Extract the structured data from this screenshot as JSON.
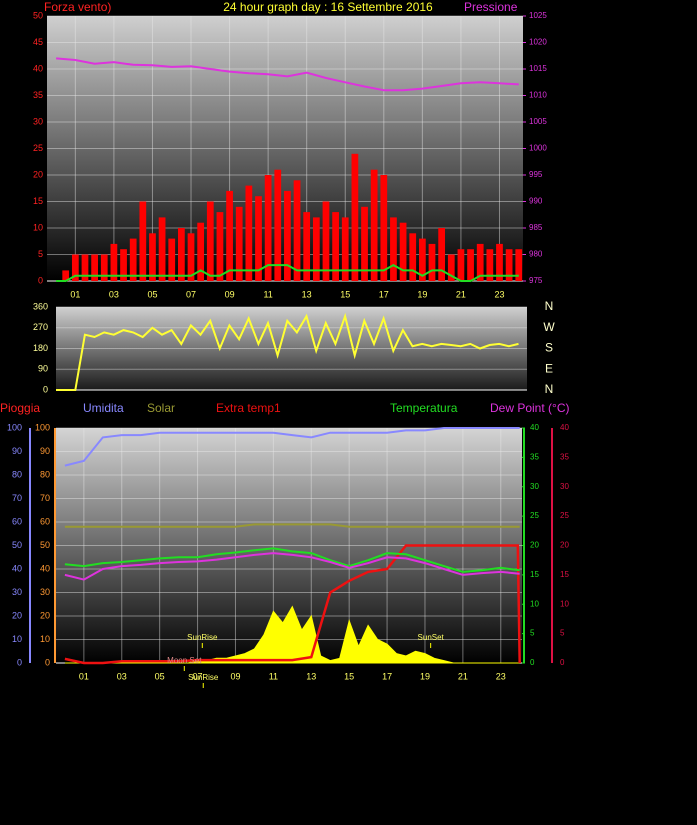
{
  "chart_data": [
    {
      "type": "combo",
      "title": "24 hour graph day : 16 Settembre 2016",
      "ylabel": "Forza vento)",
      "y2label": "Pressione",
      "xlim": [
        -0.47,
        24.22
      ],
      "xticks": [
        {
          "value": 1,
          "label": "01"
        },
        {
          "value": 3,
          "label": "03"
        },
        {
          "value": 5,
          "label": "05"
        },
        {
          "value": 7,
          "label": "07"
        },
        {
          "value": 9,
          "label": "09"
        },
        {
          "value": 11,
          "label": "11"
        },
        {
          "value": 13,
          "label": "13"
        },
        {
          "value": 15,
          "label": "15"
        },
        {
          "value": 17,
          "label": "17"
        },
        {
          "value": 19,
          "label": "19"
        },
        {
          "value": 21,
          "label": "21"
        },
        {
          "value": 23,
          "label": "23"
        }
      ],
      "ylim": [
        0,
        50
      ],
      "yticks": [
        0,
        5,
        10,
        15,
        20,
        25,
        30,
        35,
        40,
        45,
        50
      ],
      "y2lim": [
        975,
        1025
      ],
      "y2ticks": [
        975,
        980,
        985,
        990,
        995,
        1000,
        1005,
        1010,
        1015,
        1020,
        1025
      ],
      "grid": true,
      "series": [
        {
          "style": "bar",
          "color": "#ff0000",
          "x": [
            0,
            0.5,
            1,
            1.5,
            2,
            2.5,
            3,
            3.5,
            4,
            4.5,
            5,
            5.5,
            6,
            6.5,
            7,
            7.5,
            8,
            8.5,
            9,
            9.5,
            10,
            10.5,
            11,
            11.5,
            12,
            12.5,
            13,
            13.5,
            14,
            14.5,
            15,
            15.5,
            16,
            16.5,
            17,
            17.5,
            18,
            18.5,
            19,
            19.5,
            20,
            20.5,
            21,
            21.5,
            22,
            22.5,
            23,
            23.5,
            24
          ],
          "values": [
            0,
            2,
            5,
            5,
            5,
            5,
            7,
            6,
            8,
            15,
            9,
            12,
            8,
            10,
            9,
            11,
            15,
            13,
            17,
            14,
            18,
            16,
            20,
            21,
            17,
            19,
            13,
            12,
            15,
            13,
            12,
            24,
            14,
            21,
            20,
            12,
            11,
            9,
            8,
            7,
            10,
            5,
            6,
            6,
            7,
            6,
            7,
            6,
            6
          ]
        },
        {
          "style": "line",
          "color": "#22dd22",
          "x": [
            0,
            0.5,
            1,
            1.5,
            2,
            2.5,
            3,
            3.5,
            4,
            4.5,
            5,
            5.5,
            6,
            6.5,
            7,
            7.5,
            8,
            8.5,
            9,
            9.5,
            10,
            10.5,
            11,
            11.5,
            12,
            12.5,
            13,
            13.5,
            14,
            14.5,
            15,
            15.5,
            16,
            16.5,
            17,
            17.5,
            18,
            18.5,
            19,
            19.5,
            20,
            20.5,
            21,
            21.5,
            22,
            22.5,
            23,
            23.5,
            24
          ],
          "values": [
            0,
            0,
            1,
            1,
            1,
            1,
            1,
            1,
            1,
            1,
            1,
            1,
            1,
            1,
            1,
            2,
            1,
            1,
            2,
            2,
            2,
            2,
            3,
            3,
            3,
            2,
            2,
            2,
            2,
            2,
            2,
            2,
            2,
            2,
            2,
            3,
            2,
            2,
            1,
            2,
            2,
            1,
            0,
            0,
            1,
            1,
            1,
            1,
            1
          ]
        },
        {
          "style": "line",
          "axis": "y2",
          "color": "#dd33dd",
          "x": [
            0,
            1,
            2,
            3,
            4,
            5,
            6,
            7,
            8,
            9,
            10,
            11,
            12,
            13,
            14,
            15,
            16,
            17,
            18,
            19,
            20,
            21,
            22,
            23,
            24
          ],
          "values": [
            1017,
            1016.7,
            1016,
            1016.3,
            1015.8,
            1015.7,
            1015.4,
            1015.5,
            1015,
            1014.5,
            1014.2,
            1014,
            1013.6,
            1014.3,
            1013.3,
            1012.5,
            1011.7,
            1011,
            1011,
            1011.3,
            1011.8,
            1012.3,
            1012.5,
            1012.3,
            1012.1
          ]
        }
      ]
    },
    {
      "type": "line",
      "xlim": [
        0,
        24.44
      ],
      "ylim": [
        0,
        360
      ],
      "yticks": [
        0,
        90,
        180,
        270,
        360
      ],
      "grid": true,
      "compass": [
        "N",
        "W",
        "S",
        "E",
        "N"
      ],
      "series": [
        {
          "style": "line",
          "color": "#ffff33",
          "x": [
            0,
            0.5,
            1,
            1.5,
            2,
            2.5,
            3,
            3.5,
            4,
            4.5,
            5,
            5.5,
            6,
            6.5,
            7,
            7.5,
            8,
            8.5,
            9,
            9.5,
            10,
            10.5,
            11,
            11.5,
            12,
            12.5,
            13,
            13.5,
            14,
            14.5,
            15,
            15.5,
            16,
            16.5,
            17,
            17.5,
            18,
            18.5,
            19,
            19.5,
            20,
            20.5,
            21,
            21.5,
            22,
            22.5,
            23,
            23.5,
            24
          ],
          "values": [
            0,
            0,
            0,
            240,
            230,
            250,
            240,
            260,
            250,
            230,
            270,
            240,
            260,
            200,
            280,
            240,
            300,
            180,
            280,
            220,
            310,
            200,
            290,
            150,
            300,
            250,
            320,
            170,
            290,
            200,
            320,
            150,
            300,
            200,
            310,
            170,
            260,
            190,
            200,
            190,
            200,
            195,
            190,
            200,
            180,
            195,
            200,
            190,
            200
          ]
        }
      ]
    },
    {
      "type": "combo",
      "ylabel": "Pioggia",
      "xlim": [
        -0.47,
        24.12
      ],
      "xticks": [
        {
          "value": 1,
          "label": "01"
        },
        {
          "value": 3,
          "label": "03"
        },
        {
          "value": 5,
          "label": "05"
        },
        {
          "value": 7,
          "label": "07"
        },
        {
          "value": 9,
          "label": "09"
        },
        {
          "value": 11,
          "label": "11"
        },
        {
          "value": 13,
          "label": "13"
        },
        {
          "value": 15,
          "label": "15"
        },
        {
          "value": 17,
          "label": "17"
        },
        {
          "value": 19,
          "label": "19"
        },
        {
          "value": 21,
          "label": "21"
        },
        {
          "value": 23,
          "label": "23"
        }
      ],
      "ylim": [
        0,
        100
      ],
      "yticks": [
        0,
        10,
        20,
        30,
        40,
        50,
        60,
        70,
        80,
        90,
        100
      ],
      "y2lim": [
        0,
        40
      ],
      "y2ticks": [
        0,
        5,
        10,
        15,
        20,
        25,
        30,
        35,
        40
      ],
      "grid": true,
      "series": [
        {
          "style": "area",
          "color": "#ffff00",
          "x": [
            0,
            0.5,
            1,
            1.5,
            2,
            2.5,
            3,
            3.5,
            4,
            4.5,
            5,
            5.5,
            6,
            6.5,
            7,
            7.5,
            8,
            8.5,
            9,
            9.5,
            10,
            10.5,
            11,
            11.5,
            12,
            12.5,
            13,
            13.5,
            14,
            14.5,
            15,
            15.5,
            16,
            16.5,
            17,
            17.5,
            18,
            18.5,
            19,
            19.5,
            20,
            20.5,
            21,
            21.5,
            22,
            22.5,
            23,
            23.5,
            24
          ],
          "values": [
            0,
            0,
            0,
            0,
            0,
            0,
            0,
            0,
            0,
            0,
            0,
            0,
            0,
            0,
            1,
            1,
            2,
            2,
            3,
            4,
            6,
            12,
            22,
            17,
            24,
            14,
            20,
            3,
            1,
            2,
            18,
            7,
            16,
            10,
            8,
            4,
            3,
            5,
            4,
            2,
            1,
            0,
            0,
            0,
            0,
            0,
            0,
            0,
            0
          ]
        },
        {
          "name": "Umidita",
          "style": "line",
          "color": "#8888ff",
          "x": [
            0,
            1,
            2,
            3,
            4,
            5,
            6,
            7,
            8,
            9,
            10,
            11,
            12,
            13,
            14,
            15,
            16,
            17,
            18,
            19,
            20,
            21,
            22,
            23,
            24
          ],
          "values": [
            84,
            86,
            96,
            97,
            97,
            98,
            98,
            98,
            98,
            98,
            98,
            98,
            97,
            96,
            98,
            98,
            98,
            98,
            99,
            99,
            100,
            100,
            100,
            100,
            100
          ]
        },
        {
          "name": "Solar",
          "style": "line",
          "color": "#999933",
          "x": [
            0,
            1,
            2,
            3,
            4,
            5,
            6,
            7,
            8,
            9,
            10,
            11,
            12,
            13,
            14,
            15,
            16,
            17,
            18,
            19,
            20,
            21,
            22,
            23,
            24
          ],
          "values": [
            58,
            58,
            58,
            58,
            58,
            58,
            58,
            58,
            58,
            58,
            59,
            59,
            59,
            59,
            59,
            58,
            58,
            58,
            58,
            58,
            58,
            58,
            58,
            58,
            58
          ]
        },
        {
          "name": "Extra temp1",
          "style": "line",
          "axis": "y2",
          "color": "#ee1111",
          "x": [
            0,
            1,
            2,
            3,
            4,
            5,
            6,
            7,
            8,
            9,
            10,
            11,
            12,
            13,
            14,
            15,
            16,
            17,
            18,
            19,
            20,
            21,
            22,
            23,
            23.9,
            24
          ],
          "values": [
            0.7,
            0,
            0,
            0.3,
            0.3,
            0.3,
            0.3,
            0.5,
            0.5,
            0.5,
            0.5,
            0.5,
            0.5,
            1,
            12,
            14,
            15.5,
            16,
            20,
            20,
            20,
            20,
            20,
            20,
            20,
            0
          ]
        },
        {
          "name": "Temperatura",
          "style": "line",
          "axis": "y2",
          "color": "#22dd22",
          "x": [
            0,
            1,
            2,
            3,
            4,
            5,
            6,
            7,
            8,
            9,
            10,
            11,
            12,
            13,
            14,
            15,
            16,
            17,
            18,
            19,
            20,
            21,
            22,
            23,
            24
          ],
          "values": [
            16.8,
            16.5,
            17,
            17.2,
            17.5,
            17.8,
            18,
            18,
            18.5,
            18.8,
            19.2,
            19.5,
            19,
            18.7,
            17.5,
            16.5,
            17.5,
            18.7,
            18.5,
            17.5,
            16.5,
            15.5,
            15.8,
            16.2,
            15.8
          ]
        },
        {
          "name": "Dew Point (°C)",
          "style": "line",
          "axis": "y2",
          "color": "#dd33dd",
          "x": [
            0,
            1,
            2,
            3,
            4,
            5,
            6,
            7,
            8,
            9,
            10,
            11,
            12,
            13,
            14,
            15,
            16,
            17,
            18,
            19,
            20,
            21,
            22,
            23,
            24
          ],
          "values": [
            15,
            14.2,
            16,
            16.5,
            16.7,
            17,
            17.2,
            17.3,
            17.6,
            18,
            18.4,
            18.7,
            18.4,
            18,
            17.2,
            16.2,
            17,
            18,
            17.8,
            17,
            16,
            15,
            15.3,
            15.5,
            15.2
          ]
        }
      ],
      "annotations": [
        {
          "text": "SunRise",
          "x": 7.25
        },
        {
          "text": "SunSet",
          "x": 19.3
        },
        {
          "text": "Moon Set",
          "x": 6.3
        },
        {
          "text": "SunRise",
          "x": 7.3
        }
      ]
    }
  ]
}
